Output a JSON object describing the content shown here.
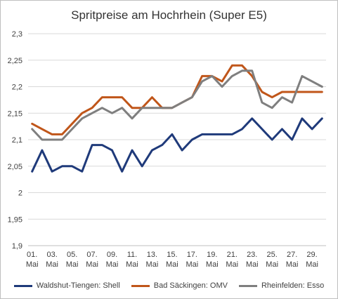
{
  "chart_data": {
    "type": "line",
    "title": "Spritpreise am Hochrhein (Super E5)",
    "xlabel": "",
    "ylabel": "",
    "ylim": [
      1.9,
      2.3
    ],
    "y_ticks": [
      "1,9",
      "1,95",
      "2",
      "2,05",
      "2,1",
      "2,15",
      "2,2",
      "2,25",
      "2,3"
    ],
    "grid": "horizontal",
    "legend_position": "bottom",
    "x_tick_labels": [
      [
        "01.",
        "Mai"
      ],
      [
        "03.",
        "Mai"
      ],
      [
        "05.",
        "Mai"
      ],
      [
        "07.",
        "Mai"
      ],
      [
        "09.",
        "Mai"
      ],
      [
        "11.",
        "Mai"
      ],
      [
        "13.",
        "Mai"
      ],
      [
        "15.",
        "Mai"
      ],
      [
        "17.",
        "Mai"
      ],
      [
        "19.",
        "Mai"
      ],
      [
        "21.",
        "Mai"
      ],
      [
        "23.",
        "Mai"
      ],
      [
        "25.",
        "Mai"
      ],
      [
        "27.",
        "Mai"
      ],
      [
        "29.",
        "Mai"
      ]
    ],
    "x": [
      1,
      2,
      3,
      4,
      5,
      6,
      7,
      8,
      9,
      10,
      11,
      12,
      13,
      14,
      15,
      16,
      17,
      18,
      19,
      20,
      21,
      22,
      23,
      24,
      25,
      26,
      27,
      28,
      29,
      30
    ],
    "series": [
      {
        "name": "Waldshut-Tiengen: Shell",
        "color": "#1f3a7a",
        "values": [
          2.04,
          2.08,
          2.04,
          2.05,
          2.05,
          2.04,
          2.09,
          2.09,
          2.08,
          2.04,
          2.08,
          2.05,
          2.08,
          2.09,
          2.11,
          2.08,
          2.1,
          2.11,
          2.11,
          2.11,
          2.11,
          2.12,
          2.14,
          2.12,
          2.1,
          2.12,
          2.1,
          2.14,
          2.12,
          2.14
        ]
      },
      {
        "name": "Bad Säckingen: OMV",
        "color": "#c0561a",
        "values": [
          2.13,
          2.12,
          2.11,
          2.11,
          2.13,
          2.15,
          2.16,
          2.18,
          2.18,
          2.18,
          2.16,
          2.16,
          2.18,
          2.16,
          2.16,
          2.17,
          2.18,
          2.22,
          2.22,
          2.21,
          2.24,
          2.24,
          2.22,
          2.19,
          2.18,
          2.19,
          2.19,
          2.19,
          2.19,
          2.19
        ]
      },
      {
        "name": "Rheinfelden: Esso",
        "color": "#7f7f7f",
        "values": [
          2.12,
          2.1,
          2.1,
          2.1,
          2.12,
          2.14,
          2.15,
          2.16,
          2.15,
          2.16,
          2.14,
          2.16,
          2.16,
          2.16,
          2.16,
          2.17,
          2.18,
          2.21,
          2.22,
          2.2,
          2.22,
          2.23,
          2.23,
          2.17,
          2.16,
          2.18,
          2.17,
          2.22,
          2.21,
          2.2
        ]
      }
    ]
  }
}
